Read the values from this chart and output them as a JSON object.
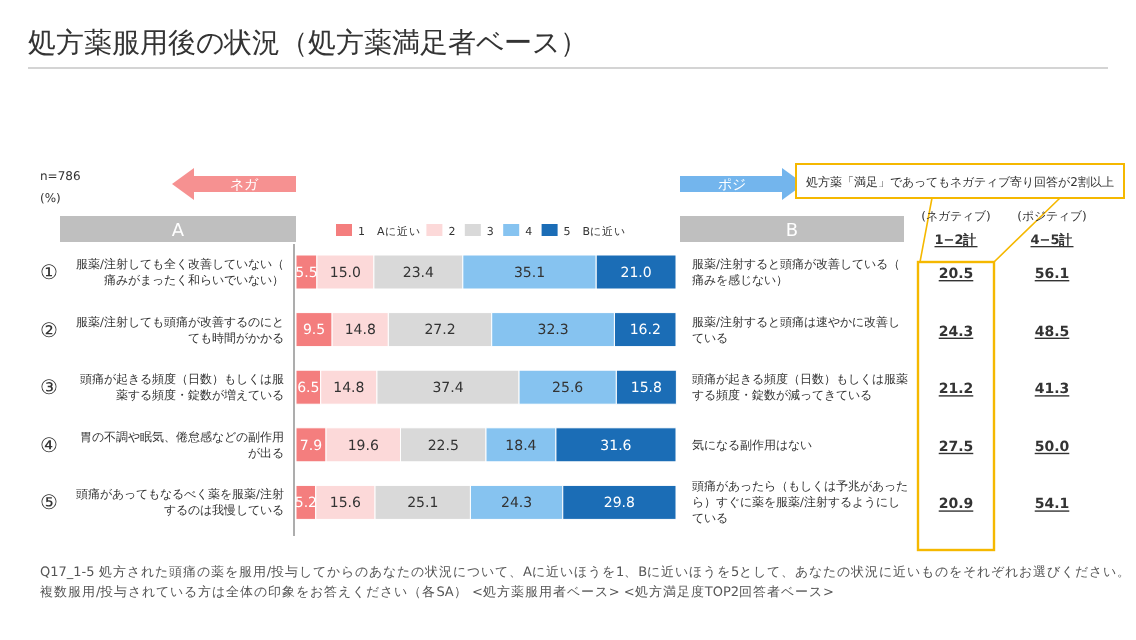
{
  "chart_data": [
    {
      "type": "bar",
      "orientation": "horizontal",
      "stacked": true,
      "title": "処方薬服用後の状況（処方薬満足者ベース）",
      "categories": [
        "①",
        "②",
        "③",
        "④",
        "⑤"
      ],
      "y_categories": [
        "服薬/注射しても全く改善していない（痛みがまったく和らいでいない）",
        "服薬/注射しても頭痛が改善するのにとても時間がかかる",
        "頭痛が起きる頻度（日数）もしくは服薬する頻度・錠数が増えている",
        "胃の不調や眠気、倦怠感などの副作用が出る",
        "頭痛があってもなるべく薬を服薬/注射するのは我慢している"
      ],
      "y2_categories": [
        "服薬/注射すると頭痛が改善している（痛みを感じない）",
        "服薬/注射すると頭痛は速やかに改善している",
        "頭痛が起きる頻度（日数）もしくは服薬する頻度・錠数が減ってきている",
        "気になる副作用はない",
        "頭痛があったら（もしくは予兆があったら）すぐに薬を服薬/注射するようにしている"
      ],
      "series": [
        {
          "name": "1　Aに近い",
          "color": "#f47e7e",
          "values": [
            5.5,
            9.5,
            6.5,
            7.9,
            5.2
          ],
          "value_labels": [
            "5.5",
            "9.5",
            "6.5",
            "7.9",
            "5.2"
          ]
        },
        {
          "name": "2",
          "color": "#fcd9d9",
          "values": [
            15.0,
            14.8,
            14.8,
            19.6,
            15.6
          ],
          "value_labels": [
            "15.0",
            "14.8",
            "14.8",
            "19.6",
            "15.6"
          ]
        },
        {
          "name": "3",
          "color": "#d9d9d9",
          "values": [
            23.4,
            27.2,
            37.4,
            22.5,
            25.1
          ],
          "value_labels": [
            "23.4",
            "27.2",
            "37.4",
            "22.5",
            "25.1"
          ]
        },
        {
          "name": "4",
          "color": "#86c3f0",
          "values": [
            35.1,
            32.3,
            25.6,
            18.4,
            24.3
          ],
          "value_labels": [
            "35.1",
            "32.3",
            "25.6",
            "18.4",
            "24.3"
          ]
        },
        {
          "name": "5　Bに近い",
          "color": "#1b6db6",
          "values": [
            21.0,
            16.2,
            15.8,
            31.6,
            29.8
          ],
          "value_labels": [
            "21.0",
            "16.2",
            "15.8",
            "31.6",
            "29.8"
          ]
        }
      ],
      "xlim": [
        0,
        100
      ],
      "tick_labels": "y",
      "legend": "top",
      "annotations": [
        "n=786",
        "(%)",
        "ネガ",
        "ポジ",
        "A",
        "B",
        "Q17_1-5 処方された頭痛の薬を服用/投与してからのあなたの状況について、Aに近いほうを1、Bに近いほうを5として、あなたの状況に近いものをそれぞれお選びください。",
        "複数服用/投与されている方は全体の印象をお答えください（各SA） <処方薬服用者ベース> <処方満足度TOP2回答者ベース>"
      ]
    },
    {
      "type": "other",
      "annotations": [
        "処方薬「満足」であってもネガティブ寄り回答が2割以上",
        "(ネガティブ)",
        "(ポジティブ)",
        "1−2計",
        "4−5計",
        "20.5",
        "56.1",
        "24.3",
        "48.5",
        "21.2",
        "41.3",
        "27.5",
        "50.0",
        "20.9",
        "54.1"
      ]
    }
  ]
}
